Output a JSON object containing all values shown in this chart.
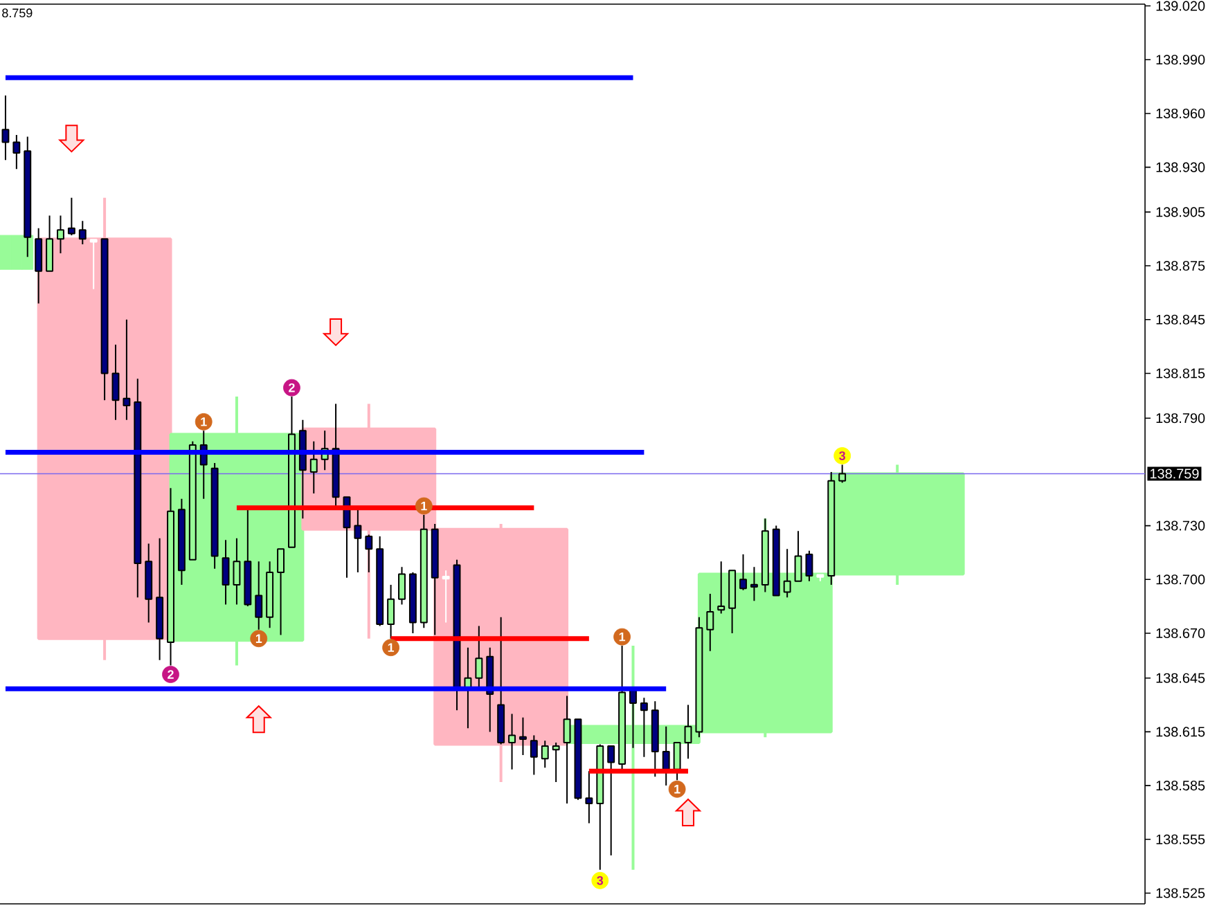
{
  "chart_data": {
    "type": "candlestick",
    "categories": [
      null,
      null,
      null,
      null,
      null,
      null,
      null,
      null,
      null,
      null,
      null,
      null,
      null,
      null,
      null,
      null,
      null,
      null,
      null,
      null,
      null,
      null,
      null,
      null,
      null,
      null,
      null,
      null,
      null,
      null,
      null,
      null,
      null,
      null,
      null,
      null,
      null,
      null,
      null,
      null,
      null,
      null,
      null,
      null,
      null,
      null,
      null,
      null,
      null,
      null,
      null,
      null,
      null,
      null,
      null,
      null,
      null,
      null,
      null,
      null,
      null,
      null,
      null,
      null,
      null,
      null,
      null,
      null,
      null,
      null,
      null,
      null,
      null,
      null,
      null,
      null,
      null,
      null,
      null,
      null,
      null,
      null,
      null,
      null,
      null,
      null,
      null,
      null,
      null,
      null,
      null,
      null,
      null,
      null,
      null,
      null,
      null,
      null,
      null,
      null,
      null,
      null,
      null,
      null
    ],
    "ylim": [
      138.519,
      139.021
    ],
    "yticks": [
      {
        "value": 139.02,
        "label": "139.020"
      },
      {
        "value": 138.99,
        "label": "138.990"
      },
      {
        "value": 138.96,
        "label": "138.960"
      },
      {
        "value": 138.93,
        "label": "138.930"
      },
      {
        "value": 138.905,
        "label": "138.905"
      },
      {
        "value": 138.875,
        "label": "138.875"
      },
      {
        "value": 138.845,
        "label": "138.845"
      },
      {
        "value": 138.815,
        "label": "138.815"
      },
      {
        "value": 138.79,
        "label": "138.790"
      },
      {
        "value": 138.73,
        "label": "138.730"
      },
      {
        "value": 138.7,
        "label": "138.700"
      },
      {
        "value": 138.67,
        "label": "138.670"
      },
      {
        "value": 138.645,
        "label": "138.645"
      },
      {
        "value": 138.615,
        "label": "138.615"
      },
      {
        "value": 138.585,
        "label": "138.585"
      },
      {
        "value": 138.555,
        "label": "138.555"
      },
      {
        "value": 138.525,
        "label": "138.525"
      }
    ],
    "tick_labels": "y",
    "ohlc": [
      [
        138.951,
        138.97,
        138.934,
        138.944
      ],
      [
        138.944,
        138.948,
        138.929,
        138.938
      ],
      [
        138.939,
        138.947,
        138.88,
        138.891
      ],
      [
        138.89,
        138.896,
        138.854,
        138.872
      ],
      [
        138.872,
        138.903,
        138.872,
        138.89
      ],
      [
        138.89,
        138.903,
        138.882,
        138.895
      ],
      [
        138.896,
        138.913,
        138.892,
        138.893
      ],
      [
        138.895,
        138.9,
        138.887,
        138.89
      ],
      [
        138.889,
        138.89,
        138.862,
        138.889
      ],
      [
        138.89,
        138.89,
        138.8,
        138.815
      ],
      [
        138.815,
        138.831,
        138.789,
        138.8
      ],
      [
        138.801,
        138.845,
        138.789,
        138.797
      ],
      [
        138.799,
        138.812,
        138.69,
        138.709
      ],
      [
        138.71,
        138.72,
        138.676,
        138.689
      ],
      [
        138.69,
        138.723,
        138.655,
        138.667
      ],
      [
        138.665,
        138.751,
        138.652,
        138.738
      ],
      [
        138.739,
        138.745,
        138.697,
        138.705
      ],
      [
        138.711,
        138.777,
        138.711,
        138.775
      ],
      [
        138.775,
        138.783,
        138.745,
        138.764
      ],
      [
        138.762,
        138.765,
        138.706,
        138.713
      ],
      [
        138.712,
        138.722,
        138.686,
        138.697
      ],
      [
        138.697,
        138.723,
        138.686,
        138.71
      ],
      [
        138.71,
        138.74,
        138.685,
        138.686
      ],
      [
        138.691,
        138.71,
        138.672,
        138.679
      ],
      [
        138.679,
        138.71,
        138.673,
        138.704
      ],
      [
        138.704,
        138.717,
        138.669,
        138.717
      ],
      [
        138.718,
        138.802,
        138.718,
        138.781
      ],
      [
        138.783,
        138.789,
        138.734,
        138.761
      ],
      [
        138.76,
        138.777,
        138.748,
        138.767
      ],
      [
        138.767,
        138.783,
        138.761,
        138.773
      ],
      [
        138.773,
        138.798,
        138.74,
        138.746
      ],
      [
        138.746,
        138.746,
        138.701,
        138.729
      ],
      [
        138.73,
        138.74,
        138.704,
        138.723
      ],
      [
        138.724,
        138.725,
        138.704,
        138.717
      ],
      [
        138.717,
        138.724,
        138.674,
        138.675
      ],
      [
        138.675,
        138.697,
        138.667,
        138.689
      ],
      [
        138.689,
        138.707,
        138.686,
        138.703
      ],
      [
        138.703,
        138.704,
        138.67,
        138.676
      ],
      [
        138.676,
        138.736,
        138.673,
        138.728
      ],
      [
        138.728,
        138.731,
        138.669,
        138.701
      ],
      [
        138.701,
        138.705,
        138.676,
        138.701
      ],
      [
        138.708,
        138.711,
        138.627,
        138.639
      ],
      [
        138.639,
        138.662,
        138.617,
        138.645
      ],
      [
        138.645,
        138.674,
        138.64,
        138.656
      ],
      [
        138.657,
        138.662,
        138.615,
        138.636
      ],
      [
        138.63,
        138.679,
        138.608,
        138.609
      ],
      [
        138.609,
        138.625,
        138.594,
        138.613
      ],
      [
        138.612,
        138.623,
        138.602,
        138.611
      ],
      [
        138.61,
        138.613,
        138.591,
        138.601
      ],
      [
        138.6,
        138.61,
        138.595,
        138.607
      ],
      [
        138.605,
        138.609,
        138.587,
        138.607
      ],
      [
        138.609,
        138.635,
        138.575,
        138.622
      ],
      [
        138.622,
        138.622,
        138.577,
        138.578
      ],
      [
        138.578,
        138.593,
        138.564,
        138.575
      ],
      [
        138.575,
        138.608,
        138.538,
        138.607
      ],
      [
        138.607,
        138.607,
        138.546,
        138.598
      ],
      [
        138.597,
        138.663,
        138.593,
        138.637
      ],
      [
        138.638,
        138.638,
        138.606,
        138.631
      ],
      [
        138.631,
        138.634,
        138.601,
        138.627
      ],
      [
        138.627,
        138.632,
        138.59,
        138.604
      ],
      [
        138.604,
        138.618,
        138.585,
        138.594
      ],
      [
        138.594,
        138.609,
        138.588,
        138.609
      ],
      [
        138.609,
        138.63,
        138.6,
        138.618
      ],
      [
        138.615,
        138.679,
        138.612,
        138.673
      ],
      [
        138.672,
        138.692,
        138.66,
        138.682
      ],
      [
        138.683,
        138.71,
        138.681,
        138.685
      ],
      [
        138.684,
        138.705,
        138.67,
        138.705
      ],
      [
        138.7,
        138.714,
        138.694,
        138.695
      ],
      [
        138.697,
        138.707,
        138.688,
        138.696
      ],
      [
        138.697,
        138.734,
        138.693,
        138.727
      ],
      [
        138.728,
        138.73,
        138.691,
        138.691
      ],
      [
        138.693,
        138.717,
        138.69,
        138.699
      ],
      [
        138.699,
        138.727,
        138.699,
        138.713
      ],
      [
        138.714,
        138.716,
        138.699,
        138.702
      ],
      [
        138.702,
        138.703,
        138.699,
        138.702
      ],
      [
        138.702,
        138.76,
        138.697,
        138.755
      ],
      [
        138.755,
        138.764,
        138.754,
        138.759
      ],
      null,
      null,
      null,
      null,
      null,
      null,
      null,
      null,
      null,
      null,
      null,
      null,
      null,
      null,
      null,
      null,
      null,
      null,
      null,
      null,
      null,
      null,
      null,
      null,
      null,
      null,
      null
    ],
    "colors": [
      "#000080",
      "#000080",
      "#000080",
      "#000080",
      "#98fb98",
      "#98fb98",
      "#000080",
      "#000080",
      "#ffffff",
      "#000080",
      "#000080",
      "#000080",
      "#000080",
      "#000080",
      "#000080",
      "#98fb98",
      "#000080",
      "#98fb98",
      "#000080",
      "#000080",
      "#000080",
      "#98fb98",
      "#000080",
      "#000080",
      "#98fb98",
      "#98fb98",
      "#98fb98",
      "#000080",
      "#98fb98",
      "#98fb98",
      "#000080",
      "#000080",
      "#000080",
      "#000080",
      "#000080",
      "#98fb98",
      "#98fb98",
      "#000080",
      "#98fb98",
      "#000080",
      "#ffffff",
      "#000080",
      "#98fb98",
      "#98fb98",
      "#000080",
      "#000080",
      "#98fb98",
      "#000080",
      "#000080",
      "#98fb98",
      "#98fb98",
      "#98fb98",
      "#000080",
      "#000080",
      "#98fb98",
      "#000080",
      "#98fb98",
      "#000080",
      "#000080",
      "#000080",
      "#000080",
      "#98fb98",
      "#98fb98",
      "#98fb98",
      "#98fb98",
      "#98fb98",
      "#98fb98",
      "#000080",
      "#000080",
      "#98fb98",
      "#000080",
      "#98fb98",
      "#98fb98",
      "#000080",
      "#ffffff",
      "#98fb98",
      "#98fb98",
      null,
      null,
      null,
      null,
      null,
      null,
      null,
      null,
      null,
      null,
      null,
      null,
      null,
      null,
      null,
      null,
      null,
      null,
      null,
      null,
      null,
      null,
      null,
      null,
      null,
      null,
      null
    ],
    "ref_lines": [
      {
        "axis": "y",
        "value": 138.759,
        "label": "138.759",
        "color": "#7b68ee"
      }
    ],
    "annotations": [
      "8.759"
    ],
    "series": [
      {
        "type": "candlestick",
        "ohlc": [
          null,
          null,
          null,
          null,
          null,
          null,
          null,
          null,
          null,
          [
            138.89,
            138.913,
            138.655,
            138.667
          ],
          null,
          null,
          null,
          null,
          null,
          null,
          null,
          null,
          null,
          null,
          null,
          [
            138.666,
            138.802,
            138.652,
            138.781
          ],
          null,
          null,
          null,
          null,
          null,
          null,
          null,
          null,
          null,
          null,
          null,
          [
            138.784,
            138.798,
            138.667,
            138.728
          ],
          null,
          null,
          null,
          null,
          null,
          null,
          null,
          null,
          null,
          null,
          null,
          [
            138.728,
            138.731,
            138.587,
            138.608
          ],
          null,
          null,
          null,
          null,
          null,
          null,
          null,
          null,
          null,
          null,
          null,
          [
            138.609,
            138.663,
            138.538,
            138.618
          ],
          null,
          null,
          null,
          null,
          null,
          null,
          null,
          null,
          null,
          null,
          null,
          [
            138.615,
            138.734,
            138.612,
            138.703
          ],
          null,
          null,
          null,
          null,
          null,
          null,
          null,
          null,
          null,
          null,
          null,
          [
            138.703,
            138.764,
            138.697,
            138.759
          ],
          null,
          null,
          null,
          null,
          null,
          null,
          null,
          null,
          null,
          null,
          null,
          null,
          null,
          null,
          null,
          null,
          null,
          null,
          null,
          null,
          null,
          null
        ],
        "colors": [
          null,
          null,
          null,
          null,
          null,
          null,
          null,
          null,
          null,
          "#ffb6c1",
          null,
          null,
          null,
          null,
          null,
          null,
          null,
          null,
          null,
          null,
          null,
          "#98fb98",
          null,
          null,
          null,
          null,
          null,
          null,
          null,
          null,
          null,
          null,
          null,
          "#ffb6c1",
          null,
          null,
          null,
          null,
          null,
          null,
          null,
          null,
          null,
          null,
          null,
          "#ffb6c1",
          null,
          null,
          null,
          null,
          null,
          null,
          null,
          null,
          null,
          null,
          null,
          "#98fb98",
          null,
          null,
          null,
          null,
          null,
          null,
          null,
          null,
          null,
          null,
          null,
          "#98fb98",
          null,
          null,
          null,
          null,
          null,
          null,
          null,
          null,
          null,
          null,
          null,
          "#98fb98",
          null,
          null,
          null,
          null,
          null,
          null,
          null,
          null,
          null,
          null,
          null,
          null,
          null,
          null,
          null,
          null,
          null,
          null,
          null,
          null,
          null,
          null
        ]
      },
      {
        "type": "bar",
        "color": "#98fb98",
        "base": [
          138.873,
          138.873,
          138.873,
          null,
          null,
          null,
          null,
          null,
          null,
          null,
          null,
          null,
          null,
          null,
          null,
          null,
          null,
          null,
          null,
          null,
          null,
          null,
          null,
          null,
          null,
          null,
          null,
          null,
          null,
          null,
          null,
          null,
          null,
          null,
          null,
          null,
          null,
          null,
          null,
          null,
          null,
          null,
          null,
          null,
          null,
          null,
          null,
          null,
          null,
          null,
          null,
          null,
          null,
          null,
          null,
          null,
          null,
          null,
          null,
          null,
          null,
          null,
          null,
          null,
          null,
          null,
          null,
          null,
          null,
          null,
          null,
          null,
          null,
          null,
          null,
          null,
          null,
          null,
          null,
          null,
          null,
          null,
          null,
          null,
          null,
          null,
          null,
          null,
          null,
          null,
          null,
          null,
          null,
          null,
          null,
          null,
          null,
          null,
          null,
          null,
          null,
          null,
          null,
          null
        ],
        "values": [
          0.019,
          0.019,
          0.019,
          null,
          null,
          null,
          null,
          null,
          null,
          null,
          null,
          null,
          null,
          null,
          null,
          null,
          null,
          null,
          null,
          null,
          null,
          null,
          null,
          null,
          null,
          null,
          null,
          null,
          null,
          null,
          null,
          null,
          null,
          null,
          null,
          null,
          null,
          null,
          null,
          null,
          null,
          null,
          null,
          null,
          null,
          null,
          null,
          null,
          null,
          null,
          null,
          null,
          null,
          null,
          null,
          null,
          null,
          null,
          null,
          null,
          null,
          null,
          null,
          null,
          null,
          null,
          null,
          null,
          null,
          null,
          null,
          null,
          null,
          null,
          null,
          null,
          null,
          null,
          null,
          null,
          null,
          null,
          null,
          null,
          null,
          null,
          null,
          null,
          null,
          null,
          null,
          null,
          null,
          null,
          null,
          null,
          null,
          null,
          null,
          null,
          null,
          null,
          null,
          null
        ]
      },
      {
        "type": "line",
        "color": "#0000ff",
        "values": [
          138.98,
          138.98,
          138.98,
          138.98,
          138.98,
          138.98,
          138.98,
          138.98,
          138.98,
          138.98,
          138.98,
          138.98,
          138.98,
          138.98,
          138.98,
          138.98,
          138.98,
          138.98,
          138.98,
          138.98,
          138.98,
          138.98,
          138.98,
          138.98,
          138.98,
          138.98,
          138.98,
          138.98,
          138.98,
          138.98,
          138.98,
          138.98,
          138.98,
          138.98,
          138.98,
          138.98,
          138.98,
          138.98,
          138.98,
          138.98,
          138.98,
          138.98,
          138.98,
          138.98,
          138.98,
          138.98,
          138.98,
          138.98,
          138.98,
          138.98,
          138.98,
          138.98,
          138.98,
          138.98,
          138.98,
          138.98,
          138.98,
          138.98,
          null,
          null,
          null,
          null,
          null,
          null,
          null,
          null,
          null,
          null,
          null,
          null,
          null,
          null,
          null,
          null,
          null,
          null,
          null,
          null,
          null,
          null,
          null,
          null,
          null,
          null,
          null,
          null,
          null,
          null,
          null,
          null,
          null,
          null,
          null,
          null,
          null,
          null,
          null,
          null,
          null,
          null,
          null,
          null,
          null,
          null
        ]
      },
      {
        "type": "line",
        "color": "#0000ff",
        "values": [
          138.771,
          138.771,
          138.771,
          138.771,
          138.771,
          138.771,
          138.771,
          138.771,
          138.771,
          138.771,
          138.771,
          138.771,
          138.771,
          138.771,
          138.771,
          138.771,
          138.771,
          138.771,
          138.771,
          138.771,
          138.771,
          138.771,
          138.771,
          138.771,
          138.771,
          138.771,
          138.771,
          138.771,
          138.771,
          138.771,
          138.771,
          138.771,
          138.771,
          138.771,
          138.771,
          138.771,
          138.771,
          138.771,
          138.771,
          138.771,
          138.771,
          138.771,
          138.771,
          138.771,
          138.771,
          138.771,
          138.771,
          138.771,
          138.771,
          138.771,
          138.771,
          138.771,
          138.771,
          138.771,
          138.771,
          138.771,
          138.771,
          138.771,
          138.771,
          null,
          null,
          null,
          null,
          null,
          null,
          null,
          null,
          null,
          null,
          null,
          null,
          null,
          null,
          null,
          null,
          null,
          null,
          null,
          null,
          null,
          null,
          null,
          null,
          null,
          null,
          null,
          null,
          null,
          null,
          null,
          null,
          null,
          null,
          null,
          null,
          null,
          null,
          null,
          null,
          null,
          null,
          null,
          null,
          null
        ]
      },
      {
        "type": "line",
        "color": "#0000ff",
        "values": [
          138.639,
          138.639,
          138.639,
          138.639,
          138.639,
          138.639,
          138.639,
          138.639,
          138.639,
          138.639,
          138.639,
          138.639,
          138.639,
          138.639,
          138.639,
          138.639,
          138.639,
          138.639,
          138.639,
          138.639,
          138.639,
          138.639,
          138.639,
          138.639,
          138.639,
          138.639,
          138.639,
          138.639,
          138.639,
          138.639,
          138.639,
          138.639,
          138.639,
          138.639,
          138.639,
          138.639,
          138.639,
          138.639,
          138.639,
          138.639,
          138.639,
          138.639,
          138.639,
          138.639,
          138.639,
          138.639,
          138.639,
          138.639,
          138.639,
          138.639,
          138.639,
          138.639,
          138.639,
          138.639,
          138.639,
          138.639,
          138.639,
          138.639,
          138.639,
          138.639,
          138.639,
          null,
          null,
          null,
          null,
          null,
          null,
          null,
          null,
          null,
          null,
          null,
          null,
          null,
          null,
          null,
          null,
          null,
          null,
          null,
          null,
          null,
          null,
          null,
          null,
          null,
          null,
          null,
          null,
          null,
          null,
          null,
          null,
          null,
          null,
          null,
          null,
          null,
          null,
          null,
          null,
          null,
          null,
          null
        ]
      },
      {
        "type": "line",
        "color": "#ff0000",
        "values": [
          null,
          null,
          null,
          null,
          null,
          null,
          null,
          null,
          null,
          null,
          null,
          null,
          null,
          null,
          null,
          null,
          null,
          null,
          null,
          null,
          null,
          138.74,
          138.74,
          138.74,
          138.74,
          138.74,
          138.74,
          138.74,
          138.74,
          138.74,
          138.74,
          138.74,
          138.74,
          138.74,
          138.74,
          138.74,
          138.74,
          138.74,
          138.74,
          138.74,
          138.74,
          138.74,
          138.74,
          138.74,
          138.74,
          138.74,
          138.74,
          138.74,
          138.74,
          null,
          null,
          null,
          null,
          null,
          null,
          null,
          null,
          null,
          null,
          null,
          null,
          null,
          null,
          null,
          null,
          null,
          null,
          null,
          null,
          null,
          null,
          null,
          null,
          null,
          null,
          null,
          null,
          null,
          null,
          null,
          null,
          null,
          null,
          null,
          null,
          null,
          null,
          null,
          null,
          null,
          null,
          null,
          null,
          null,
          null,
          null,
          null,
          null,
          null,
          null,
          null,
          null,
          null,
          null
        ]
      },
      {
        "type": "line",
        "color": "#ff0000",
        "values": [
          null,
          null,
          null,
          null,
          null,
          null,
          null,
          null,
          null,
          null,
          null,
          null,
          null,
          null,
          null,
          null,
          null,
          null,
          null,
          null,
          null,
          null,
          null,
          null,
          null,
          null,
          null,
          null,
          null,
          null,
          null,
          null,
          null,
          null,
          null,
          138.667,
          138.667,
          138.667,
          138.667,
          138.667,
          138.667,
          138.667,
          138.667,
          138.667,
          138.667,
          138.667,
          138.667,
          138.667,
          138.667,
          138.667,
          138.667,
          138.667,
          138.667,
          138.667,
          null,
          null,
          null,
          null,
          null,
          null,
          null,
          null,
          null,
          null,
          null,
          null,
          null,
          null,
          null,
          null,
          null,
          null,
          null,
          null,
          null,
          null,
          null,
          null,
          null,
          null,
          null,
          null,
          null,
          null,
          null,
          null,
          null,
          null,
          null,
          null,
          null,
          null,
          null,
          null,
          null,
          null,
          null,
          null,
          null,
          null,
          null,
          null,
          null,
          null
        ]
      },
      {
        "type": "line",
        "color": "#ff0000",
        "values": [
          null,
          null,
          null,
          null,
          null,
          null,
          null,
          null,
          null,
          null,
          null,
          null,
          null,
          null,
          null,
          null,
          null,
          null,
          null,
          null,
          null,
          null,
          null,
          null,
          null,
          null,
          null,
          null,
          null,
          null,
          null,
          null,
          null,
          null,
          null,
          null,
          null,
          null,
          null,
          null,
          null,
          null,
          null,
          null,
          null,
          null,
          null,
          null,
          null,
          null,
          null,
          null,
          null,
          138.593,
          138.593,
          138.593,
          138.593,
          138.593,
          138.593,
          138.593,
          138.593,
          138.593,
          138.593,
          null,
          null,
          null,
          null,
          null,
          null,
          null,
          null,
          null,
          null,
          null,
          null,
          null,
          null,
          null,
          null,
          null,
          null,
          null,
          null,
          null,
          null,
          null,
          null,
          null,
          null,
          null,
          null,
          null,
          null,
          null,
          null,
          null,
          null,
          null,
          null,
          null,
          null,
          null,
          null,
          null
        ]
      },
      {
        "type": "scatter",
        "name": "1",
        "color": "#d2691e",
        "marker": "circle",
        "values": [
          null,
          null,
          null,
          null,
          null,
          null,
          null,
          null,
          null,
          null,
          null,
          null,
          null,
          null,
          null,
          null,
          null,
          null,
          138.788,
          null,
          null,
          null,
          null,
          138.667,
          null,
          null,
          null,
          null,
          null,
          null,
          null,
          null,
          null,
          null,
          null,
          138.662,
          null,
          null,
          138.741,
          null,
          null,
          null,
          null,
          null,
          null,
          null,
          null,
          null,
          null,
          null,
          null,
          null,
          null,
          null,
          null,
          null,
          138.668,
          null,
          null,
          null,
          null,
          138.583,
          null,
          null,
          null,
          null,
          null,
          null,
          null,
          null,
          null,
          null,
          null,
          null,
          null,
          null,
          null,
          null,
          null,
          null,
          null,
          null,
          null,
          null,
          null,
          null,
          null,
          null,
          null,
          null,
          null,
          null,
          null,
          null,
          null,
          null,
          null,
          null,
          null,
          null,
          null,
          null,
          null,
          null
        ]
      },
      {
        "type": "scatter",
        "name": "2",
        "color": "#c71585",
        "marker": "circle",
        "values": [
          null,
          null,
          null,
          null,
          null,
          null,
          null,
          null,
          null,
          null,
          null,
          null,
          null,
          null,
          null,
          138.647,
          null,
          null,
          null,
          null,
          null,
          null,
          null,
          null,
          null,
          null,
          138.807,
          null,
          null,
          null,
          null,
          null,
          null,
          null,
          null,
          null,
          null,
          null,
          null,
          null,
          null,
          null,
          null,
          null,
          null,
          null,
          null,
          null,
          null,
          null,
          null,
          null,
          null,
          null,
          null,
          null,
          null,
          null,
          null,
          null,
          null,
          null,
          null,
          null,
          null,
          null,
          null,
          null,
          null,
          null,
          null,
          null,
          null,
          null,
          null,
          null,
          null,
          null,
          null,
          null,
          null,
          null,
          null,
          null,
          null,
          null,
          null,
          null,
          null,
          null,
          null,
          null,
          null,
          null,
          null,
          null,
          null,
          null,
          null,
          null,
          null,
          null,
          null,
          null
        ]
      },
      {
        "type": "scatter",
        "name": "3",
        "color": "#ffff00",
        "marker": "circle",
        "values": [
          null,
          null,
          null,
          null,
          null,
          null,
          null,
          null,
          null,
          null,
          null,
          null,
          null,
          null,
          null,
          null,
          null,
          null,
          null,
          null,
          null,
          null,
          null,
          null,
          null,
          null,
          null,
          null,
          null,
          null,
          null,
          null,
          null,
          null,
          null,
          null,
          null,
          null,
          null,
          null,
          null,
          null,
          null,
          null,
          null,
          null,
          null,
          null,
          null,
          null,
          null,
          null,
          null,
          null,
          138.532,
          null,
          null,
          null,
          null,
          null,
          null,
          null,
          null,
          null,
          null,
          null,
          null,
          null,
          null,
          null,
          null,
          null,
          null,
          null,
          null,
          null,
          138.769,
          null,
          null,
          null,
          null,
          null,
          null,
          null,
          null,
          null,
          null,
          null,
          null,
          null,
          null,
          null,
          null,
          null,
          null,
          null,
          null,
          null,
          null,
          null,
          null,
          null,
          null,
          null
        ]
      },
      {
        "type": "scatter",
        "color": "#ff0000",
        "marker": "triangle",
        "values": [
          null,
          null,
          null,
          null,
          null,
          null,
          138.946,
          null,
          null,
          null,
          null,
          null,
          null,
          null,
          null,
          null,
          null,
          null,
          null,
          null,
          null,
          null,
          null,
          138.622,
          null,
          null,
          null,
          null,
          null,
          null,
          138.838,
          null,
          null,
          null,
          null,
          null,
          null,
          null,
          null,
          null,
          null,
          null,
          null,
          null,
          null,
          null,
          null,
          null,
          null,
          null,
          null,
          null,
          null,
          null,
          null,
          null,
          null,
          null,
          null,
          null,
          null,
          null,
          138.57,
          null,
          null,
          null,
          null,
          null,
          null,
          null,
          null,
          null,
          null,
          null,
          null,
          null,
          null,
          null,
          null,
          null,
          null,
          null,
          null,
          null,
          null,
          null,
          null,
          null,
          null,
          null,
          null,
          null,
          null,
          null,
          null,
          null,
          null,
          null,
          null,
          null,
          null,
          null,
          null,
          null
        ]
      }
    ]
  }
}
